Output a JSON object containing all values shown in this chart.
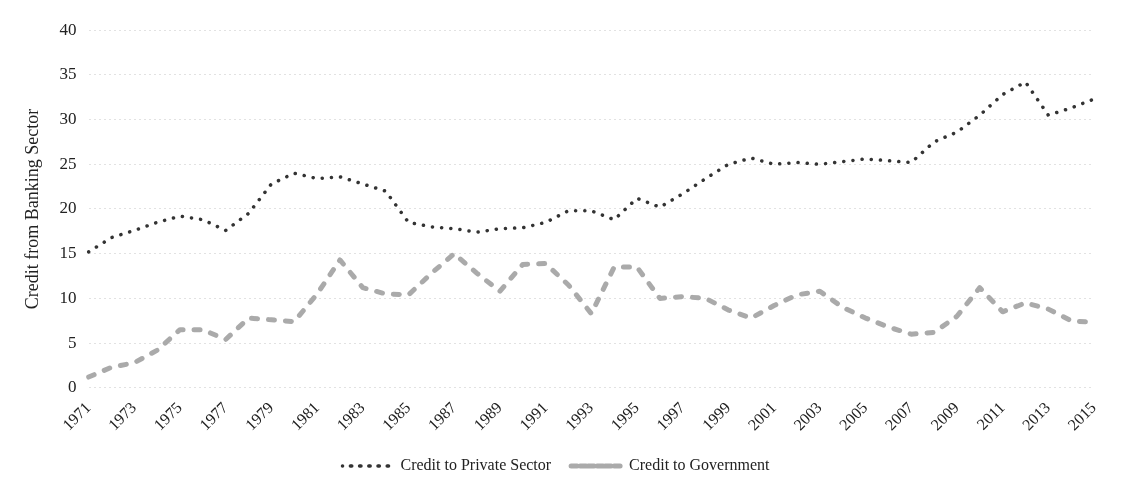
{
  "chart_data": {
    "type": "line",
    "ylabel": "Credit from Banking Sector",
    "categories": [
      "1971",
      null,
      "1973",
      null,
      "1975",
      null,
      "1977",
      null,
      "1979",
      null,
      "1981",
      null,
      "1983",
      null,
      "1985",
      null,
      "1987",
      null,
      "1989",
      null,
      "1991",
      null,
      "1993",
      null,
      "1995",
      null,
      "1997",
      null,
      "1999",
      null,
      "2001",
      null,
      "2003",
      null,
      "2005",
      null,
      "2007",
      null,
      "2009",
      null,
      "2011",
      null,
      "2013",
      null,
      "2015"
    ],
    "series": [
      {
        "name": "Credit to Private Sector",
        "color": "#333333",
        "line_style": "dotted",
        "values": [
          15.2,
          16.8,
          17.6,
          18.5,
          19.2,
          18.8,
          17.6,
          19.5,
          22.8,
          24.0,
          23.4,
          23.6,
          22.8,
          22.0,
          18.5,
          18.0,
          17.8,
          17.4,
          17.8,
          17.9,
          18.5,
          19.8,
          19.8,
          18.8,
          21.2,
          20.2,
          21.7,
          23.4,
          25.0,
          25.7,
          25.0,
          25.2,
          25.0,
          25.3,
          25.6,
          25.4,
          25.2,
          27.5,
          28.6,
          30.5,
          32.8,
          34.2,
          30.5,
          31.3,
          32.3
        ]
      },
      {
        "name": "Credit to Government",
        "color": "#aaaaaa",
        "line_style": "dashed",
        "values": [
          1.2,
          2.3,
          2.8,
          4.2,
          6.5,
          6.5,
          5.4,
          7.8,
          7.6,
          7.4,
          10.5,
          14.3,
          11.2,
          10.5,
          10.4,
          12.8,
          15.0,
          12.8,
          10.8,
          13.8,
          13.9,
          11.5,
          8.3,
          13.5,
          13.5,
          10.0,
          10.2,
          10.0,
          8.7,
          7.8,
          9.2,
          10.4,
          10.8,
          9.0,
          7.8,
          6.8,
          6.0,
          6.2,
          8.0,
          11.2,
          8.5,
          9.5,
          8.8,
          7.5,
          7.3
        ]
      }
    ],
    "ylim": [
      0,
      40
    ],
    "yticks": [
      0,
      5,
      10,
      15,
      20,
      25,
      30,
      35,
      40
    ],
    "grid": "y",
    "legend": "bottom",
    "marker": "none"
  }
}
